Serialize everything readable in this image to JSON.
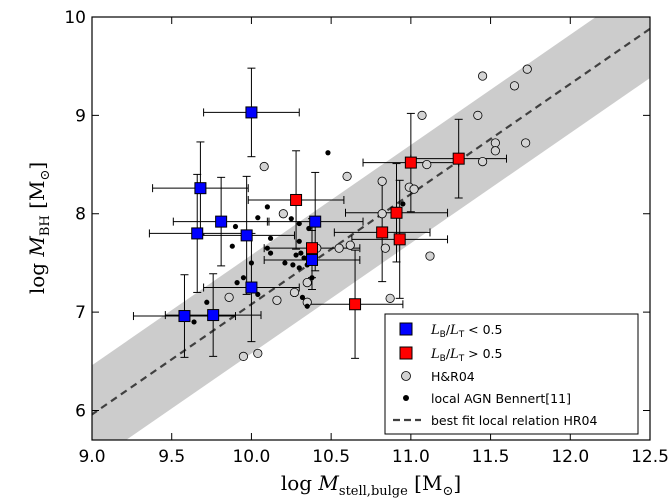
{
  "chart_data": {
    "type": "scatter",
    "title": "",
    "xlabel": "log M_stell,bulge [M_sun]",
    "ylabel": "log M_BH [M_sun]",
    "xlabel_parts": {
      "prefix": "log",
      "var": "M",
      "sub": "stell,bulge",
      "unit_open": "[M",
      "unit_close": "]"
    },
    "ylabel_parts": {
      "prefix": "log",
      "var": "M",
      "sub": "BH",
      "unit_open": "[M",
      "unit_close": "]"
    },
    "xlim": [
      9.0,
      12.5
    ],
    "ylim": [
      5.7,
      10.0
    ],
    "xticks": [
      "9.0",
      "9.5",
      "10.0",
      "10.5",
      "11.0",
      "11.5",
      "12.0",
      "12.5"
    ],
    "yticks": [
      "6",
      "7",
      "8",
      "9",
      "10"
    ],
    "grid": false,
    "legend_placement": "lower-right",
    "band": {
      "slope": 1.12,
      "intercept_at_11": 8.2,
      "half_width": 0.5,
      "color": "#cccccc"
    },
    "fit_line": {
      "name": "best fit local relation HR04",
      "slope": 1.12,
      "intercept_at_11": 8.2,
      "color": "#404040"
    },
    "series": [
      {
        "name": "L_B/L_T < 0.5",
        "legend_parts": {
          "a": "L",
          "a_sub": "B",
          "b": "L",
          "b_sub": "T",
          "rest": " < 0.5"
        },
        "marker": "square",
        "color": "#0000ff",
        "points": [
          {
            "x": 10.0,
            "y": 9.03,
            "xerr": 0.3,
            "yerr": 0.45
          },
          {
            "x": 9.68,
            "y": 8.26,
            "xerr": 0.3,
            "yerr": 0.47
          },
          {
            "x": 9.81,
            "y": 7.92,
            "xerr": 0.3,
            "yerr": 0.45
          },
          {
            "x": 9.66,
            "y": 7.8,
            "xerr": 0.3,
            "yerr": 0.6
          },
          {
            "x": 9.97,
            "y": 7.78,
            "xerr": 0.3,
            "yerr": 0.6
          },
          {
            "x": 10.4,
            "y": 7.92,
            "xerr": 0.3,
            "yerr": 0.5
          },
          {
            "x": 10.38,
            "y": 7.53,
            "xerr": 0.3,
            "yerr": 0.3
          },
          {
            "x": 10.0,
            "y": 7.25,
            "xerr": 0.3,
            "yerr": 0.55
          },
          {
            "x": 9.58,
            "y": 6.96,
            "xerr": 0.32,
            "yerr": 0.42
          },
          {
            "x": 9.76,
            "y": 6.97,
            "xerr": 0.3,
            "yerr": 0.42
          }
        ]
      },
      {
        "name": "L_B/L_T > 0.5",
        "legend_parts": {
          "a": "L",
          "a_sub": "B",
          "b": "L",
          "b_sub": "T",
          "rest": " > 0.5"
        },
        "marker": "square",
        "color": "#ff0000",
        "points": [
          {
            "x": 10.28,
            "y": 8.14,
            "xerr": 0.3,
            "yerr": 0.5
          },
          {
            "x": 10.38,
            "y": 7.65,
            "xerr": 0.3,
            "yerr": 0.3
          },
          {
            "x": 10.65,
            "y": 7.08,
            "xerr": 0.3,
            "yerr": 0.55
          },
          {
            "x": 10.82,
            "y": 7.81,
            "xerr": 0.3,
            "yerr": 0.5
          },
          {
            "x": 10.91,
            "y": 8.01,
            "xerr": 0.32,
            "yerr": 0.5
          },
          {
            "x": 10.93,
            "y": 7.74,
            "xerr": 0.3,
            "yerr": 0.6
          },
          {
            "x": 11.0,
            "y": 8.52,
            "xerr": 0.3,
            "yerr": 0.5
          },
          {
            "x": 11.3,
            "y": 8.56,
            "xerr": 0.3,
            "yerr": 0.4
          }
        ]
      },
      {
        "name": "H&R04",
        "marker": "circle-open",
        "color": "#d3d3d3",
        "points": [
          {
            "x": 10.08,
            "y": 8.48
          },
          {
            "x": 10.2,
            "y": 8.0
          },
          {
            "x": 10.35,
            "y": 7.3
          },
          {
            "x": 10.35,
            "y": 7.1
          },
          {
            "x": 9.86,
            "y": 7.15
          },
          {
            "x": 9.95,
            "y": 6.55
          },
          {
            "x": 10.04,
            "y": 6.58
          },
          {
            "x": 10.16,
            "y": 7.12
          },
          {
            "x": 10.27,
            "y": 7.2
          },
          {
            "x": 10.41,
            "y": 7.65
          },
          {
            "x": 10.55,
            "y": 7.65
          },
          {
            "x": 10.62,
            "y": 7.68
          },
          {
            "x": 10.6,
            "y": 8.38
          },
          {
            "x": 10.82,
            "y": 8.33
          },
          {
            "x": 10.82,
            "y": 8.0
          },
          {
            "x": 10.84,
            "y": 7.65
          },
          {
            "x": 10.87,
            "y": 7.14
          },
          {
            "x": 10.99,
            "y": 8.27
          },
          {
            "x": 11.02,
            "y": 8.25
          },
          {
            "x": 11.07,
            "y": 9.0
          },
          {
            "x": 11.1,
            "y": 8.5
          },
          {
            "x": 11.12,
            "y": 7.57
          },
          {
            "x": 11.42,
            "y": 9.0
          },
          {
            "x": 11.45,
            "y": 9.4
          },
          {
            "x": 11.45,
            "y": 8.53
          },
          {
            "x": 11.53,
            "y": 8.72
          },
          {
            "x": 11.53,
            "y": 8.64
          },
          {
            "x": 11.65,
            "y": 9.3
          },
          {
            "x": 11.72,
            "y": 8.72
          },
          {
            "x": 11.73,
            "y": 9.47
          }
        ]
      },
      {
        "name": "local AGN Bennert[11]",
        "marker": "dot",
        "color": "#000000",
        "points": [
          {
            "x": 9.9,
            "y": 7.87
          },
          {
            "x": 9.95,
            "y": 7.75
          },
          {
            "x": 9.88,
            "y": 7.67
          },
          {
            "x": 10.0,
            "y": 7.5
          },
          {
            "x": 9.95,
            "y": 7.35
          },
          {
            "x": 10.01,
            "y": 7.22
          },
          {
            "x": 10.04,
            "y": 7.18
          },
          {
            "x": 9.91,
            "y": 7.3
          },
          {
            "x": 10.04,
            "y": 7.96
          },
          {
            "x": 10.1,
            "y": 8.07
          },
          {
            "x": 10.12,
            "y": 7.75
          },
          {
            "x": 10.1,
            "y": 7.65
          },
          {
            "x": 10.12,
            "y": 7.6
          },
          {
            "x": 10.21,
            "y": 7.5
          },
          {
            "x": 10.26,
            "y": 7.48
          },
          {
            "x": 10.28,
            "y": 7.58
          },
          {
            "x": 10.3,
            "y": 7.45
          },
          {
            "x": 10.31,
            "y": 7.6
          },
          {
            "x": 10.33,
            "y": 7.55
          },
          {
            "x": 10.35,
            "y": 7.48
          },
          {
            "x": 10.25,
            "y": 7.95
          },
          {
            "x": 10.3,
            "y": 7.9
          },
          {
            "x": 10.36,
            "y": 7.85
          },
          {
            "x": 10.32,
            "y": 7.15
          },
          {
            "x": 10.35,
            "y": 7.06
          },
          {
            "x": 10.38,
            "y": 7.35
          },
          {
            "x": 10.48,
            "y": 8.62
          },
          {
            "x": 10.95,
            "y": 8.1
          },
          {
            "x": 9.72,
            "y": 7.1
          },
          {
            "x": 9.64,
            "y": 6.9
          },
          {
            "x": 10.3,
            "y": 7.72
          }
        ]
      }
    ]
  }
}
